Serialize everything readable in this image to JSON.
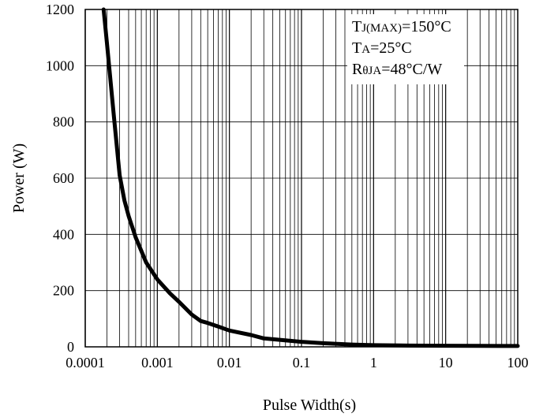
{
  "chart_data": {
    "type": "line",
    "xlabel": "Pulse Width(s)",
    "ylabel": "Power (W)",
    "x_scale": "log",
    "xlim": [
      0.0001,
      100
    ],
    "ylim": [
      0,
      1200
    ],
    "x_ticks": [
      "0.0001",
      "0.001",
      "0.01",
      "0.1",
      "1",
      "10",
      "100"
    ],
    "y_ticks": [
      "0",
      "200",
      "400",
      "600",
      "800",
      "1000",
      "1200"
    ],
    "grid": true,
    "series": [
      {
        "name": "",
        "color": "#000000",
        "points": [
          [
            0.00018,
            1200
          ],
          [
            0.0002,
            1080
          ],
          [
            0.00025,
            820
          ],
          [
            0.0003,
            610
          ],
          [
            0.00035,
            520
          ],
          [
            0.0004,
            465
          ],
          [
            0.0005,
            390
          ],
          [
            0.0007,
            300
          ],
          [
            0.001,
            240
          ],
          [
            0.0015,
            190
          ],
          [
            0.002,
            160
          ],
          [
            0.003,
            115
          ],
          [
            0.004,
            92
          ],
          [
            0.005,
            85
          ],
          [
            0.007,
            72
          ],
          [
            0.01,
            58
          ],
          [
            0.02,
            42
          ],
          [
            0.03,
            30
          ],
          [
            0.05,
            25
          ],
          [
            0.1,
            18
          ],
          [
            0.2,
            13
          ],
          [
            0.5,
            8
          ],
          [
            1,
            6
          ],
          [
            3,
            4.5
          ],
          [
            10,
            4
          ],
          [
            30,
            3.5
          ],
          [
            100,
            3
          ]
        ]
      }
    ],
    "annotation": {
      "line1_main": "T",
      "line1_sub": "J(MAX)",
      "line1_rest": "=150°C",
      "line2_main": "T",
      "line2_sub": "A",
      "line2_rest": "=25°C",
      "line3_main": "R",
      "line3_sub": "θJA",
      "line3_rest": "=48°C/W"
    }
  }
}
